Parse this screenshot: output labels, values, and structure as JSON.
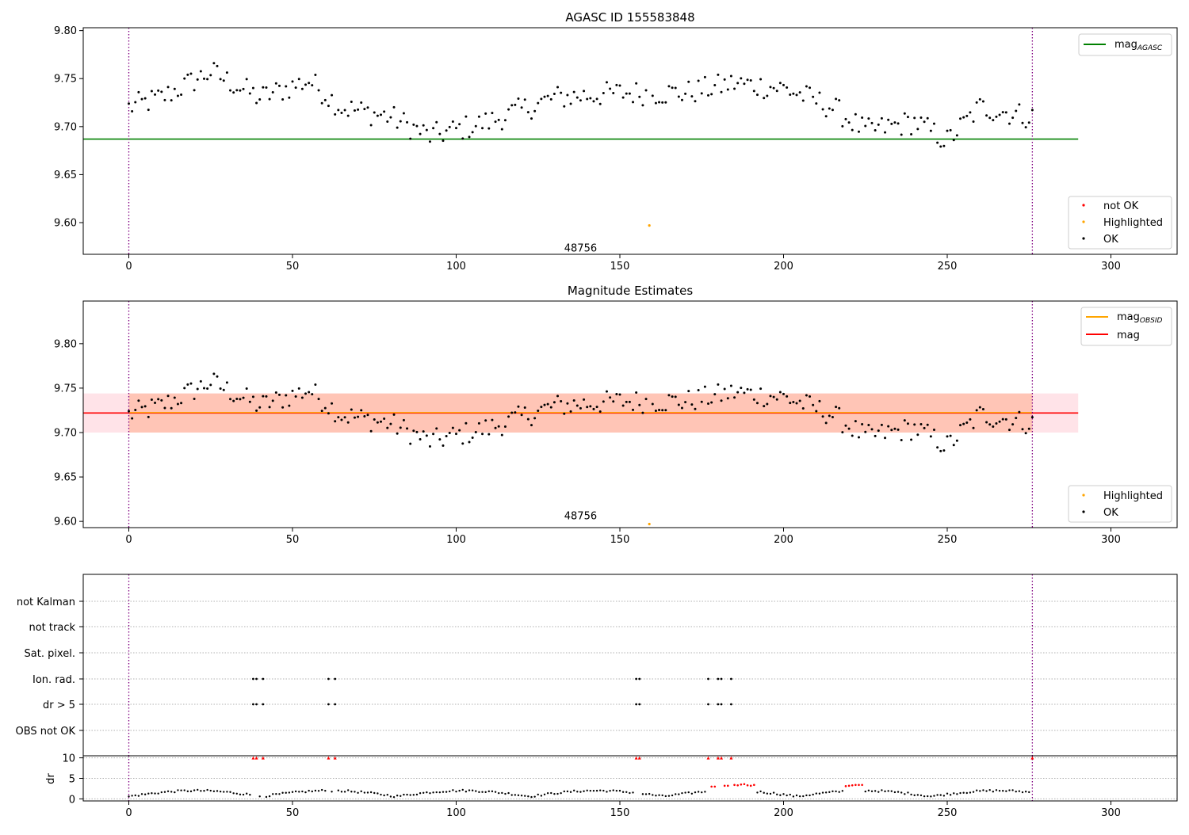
{
  "chart_data": [
    {
      "type": "scatter",
      "title": "AGASC ID 155583848",
      "xlim": [
        -14,
        320
      ],
      "ylim": [
        9.567,
        9.803
      ],
      "xticks": [
        0,
        50,
        100,
        150,
        200,
        250,
        300
      ],
      "yticks": [
        "9.60",
        "9.65",
        "9.70",
        "9.75",
        "9.80"
      ],
      "ytick_values": [
        9.6,
        9.65,
        9.7,
        9.75,
        9.8
      ],
      "annotation": {
        "text": "48756",
        "x": 138,
        "y": 9.573
      },
      "vlines": [
        0,
        276
      ],
      "hline": {
        "value": 9.687,
        "x_range": [
          -14,
          290
        ],
        "color": "#008000"
      },
      "legend_lines": [
        {
          "label": "mag",
          "sub": "AGASC",
          "color": "#008000"
        }
      ],
      "legend_points": [
        {
          "label": "not OK",
          "color": "#ff0000"
        },
        {
          "label": "Highlighted",
          "color": "#ffa500"
        },
        {
          "label": "OK",
          "color": "#000000"
        }
      ],
      "highlighted": [
        {
          "x": 159,
          "y": 9.597
        }
      ]
    },
    {
      "type": "scatter",
      "title": "Magnitude Estimates",
      "xlim": [
        -14,
        320
      ],
      "ylim": [
        9.593,
        9.848
      ],
      "xticks": [
        0,
        50,
        100,
        150,
        200,
        250,
        300
      ],
      "yticks": [
        "9.60",
        "9.65",
        "9.70",
        "9.75",
        "9.80"
      ],
      "ytick_values": [
        9.6,
        9.65,
        9.7,
        9.75,
        9.8
      ],
      "annotation": {
        "text": "48756",
        "x": 138,
        "y": 9.606
      },
      "vlines": [
        0,
        276
      ],
      "hline": {
        "value": 9.722,
        "x_range": [
          -14,
          290
        ],
        "color": "#ff0000"
      },
      "band_outer": {
        "low": 9.7,
        "high": 9.744,
        "color": "#ffc0cb"
      },
      "band_inner": {
        "low": 9.7,
        "high": 9.744,
        "color": "#ffa07a"
      },
      "legend_lines": [
        {
          "label": "mag",
          "sub": "OBSID",
          "color": "#ffa500"
        },
        {
          "label": "mag",
          "sub": "",
          "color": "#ff0000"
        }
      ],
      "legend_points": [
        {
          "label": "Highlighted",
          "color": "#ffa500"
        },
        {
          "label": "OK",
          "color": "#000000"
        }
      ],
      "highlighted": [
        {
          "x": 159,
          "y": 9.597
        }
      ]
    },
    {
      "type": "scatter",
      "title": "",
      "xlim": [
        -14,
        320
      ],
      "xticks": [
        0,
        50,
        100,
        150,
        200,
        250,
        300
      ],
      "flags": [
        "not Kalman",
        "not track",
        "Sat. pixel.",
        "Ion. rad.",
        "dr > 5",
        "OBS not OK"
      ],
      "flag_points": {
        "Ion. rad.": [
          38,
          39,
          41,
          61,
          63,
          155,
          156,
          177,
          180,
          181,
          184
        ],
        "dr > 5": [
          38,
          39,
          41,
          61,
          63,
          155,
          156,
          177,
          180,
          181,
          184
        ]
      },
      "dr_yticks": [
        0,
        5,
        10
      ],
      "dr_ylim": [
        -0.5,
        10.5
      ],
      "ylabel": "dr",
      "vlines": [
        0,
        276
      ],
      "dr_red_high": [
        38,
        39,
        41,
        61,
        63,
        155,
        156,
        177,
        180,
        181,
        184,
        276
      ],
      "dr_red_mid": [
        [
          178,
          3.0
        ],
        [
          179,
          3.0
        ],
        [
          182,
          3.2
        ],
        [
          183,
          3.2
        ],
        [
          185,
          3.4
        ],
        [
          186,
          3.3
        ],
        [
          187,
          3.5
        ],
        [
          188,
          3.6
        ],
        [
          189,
          3.3
        ],
        [
          190,
          3.2
        ],
        [
          191,
          3.4
        ],
        [
          219,
          3.1
        ],
        [
          220,
          3.2
        ],
        [
          221,
          3.3
        ],
        [
          222,
          3.4
        ],
        [
          223,
          3.4
        ],
        [
          224,
          3.4
        ]
      ]
    }
  ],
  "colors": {
    "ok": "#000000",
    "not_ok": "#ff0000",
    "highlighted": "#ffa500",
    "vline": "#800080"
  }
}
